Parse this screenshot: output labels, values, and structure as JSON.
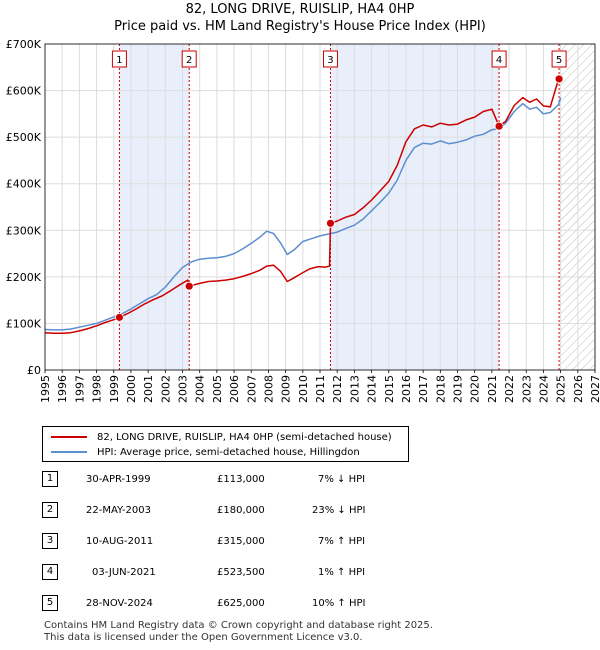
{
  "chart_data": {
    "type": "line",
    "title": "82, LONG DRIVE, RUISLIP, HA4 0HP",
    "subtitle": "Price paid vs. HM Land Registry's House Price Index (HPI)",
    "xlim": [
      1995,
      2027
    ],
    "ylim": [
      0,
      700000
    ],
    "x_ticks": [
      1995,
      1996,
      1997,
      1998,
      1999,
      2000,
      2001,
      2002,
      2003,
      2004,
      2005,
      2006,
      2007,
      2008,
      2009,
      2010,
      2011,
      2012,
      2013,
      2014,
      2015,
      2016,
      2017,
      2018,
      2019,
      2020,
      2021,
      2022,
      2023,
      2024,
      2025,
      2026,
      2027
    ],
    "y_ticks": [
      {
        "value": 0,
        "label": "£0"
      },
      {
        "value": 100000,
        "label": "£100K"
      },
      {
        "value": 200000,
        "label": "£200K"
      },
      {
        "value": 300000,
        "label": "£300K"
      },
      {
        "value": 400000,
        "label": "£400K"
      },
      {
        "value": 500000,
        "label": "£500K"
      },
      {
        "value": 600000,
        "label": "£600K"
      },
      {
        "value": 700000,
        "label": "£700K"
      }
    ],
    "grid": true,
    "legend_position": "bottom",
    "shaded_periods": [
      [
        1999.33,
        2003.39
      ],
      [
        2011.61,
        2021.42
      ]
    ],
    "future_hatch_from": 2025.0,
    "series": [
      {
        "name": "82, LONG DRIVE, RUISLIP, HA4 0HP (semi-detached house)",
        "color": "#cc0000",
        "points": [
          [
            1995.0,
            80000
          ],
          [
            1995.5,
            79000
          ],
          [
            1996.0,
            79000
          ],
          [
            1996.5,
            80000
          ],
          [
            1997.0,
            84000
          ],
          [
            1997.5,
            89000
          ],
          [
            1998.0,
            95000
          ],
          [
            1998.5,
            102000
          ],
          [
            1999.0,
            108000
          ],
          [
            1999.33,
            113000
          ],
          [
            1999.8,
            121000
          ],
          [
            2000.3,
            131000
          ],
          [
            2000.8,
            142000
          ],
          [
            2001.3,
            151000
          ],
          [
            2001.8,
            159000
          ],
          [
            2002.3,
            170000
          ],
          [
            2002.8,
            182000
          ],
          [
            2003.3,
            193000
          ],
          [
            2003.39,
            180000
          ],
          [
            2004.0,
            186000
          ],
          [
            2004.5,
            190000
          ],
          [
            2005.0,
            191000
          ],
          [
            2005.5,
            193000
          ],
          [
            2006.0,
            196000
          ],
          [
            2006.5,
            201000
          ],
          [
            2007.0,
            207000
          ],
          [
            2007.5,
            214000
          ],
          [
            2007.9,
            223000
          ],
          [
            2008.3,
            225000
          ],
          [
            2008.7,
            212000
          ],
          [
            2009.1,
            190000
          ],
          [
            2009.4,
            196000
          ],
          [
            2009.9,
            207000
          ],
          [
            2010.4,
            217000
          ],
          [
            2010.9,
            222000
          ],
          [
            2011.3,
            221000
          ],
          [
            2011.55,
            223000
          ],
          [
            2011.61,
            315000
          ],
          [
            2012.0,
            320000
          ],
          [
            2012.5,
            328000
          ],
          [
            2013.0,
            334000
          ],
          [
            2013.5,
            348000
          ],
          [
            2014.0,
            365000
          ],
          [
            2014.5,
            385000
          ],
          [
            2015.0,
            405000
          ],
          [
            2015.5,
            440000
          ],
          [
            2016.0,
            490000
          ],
          [
            2016.5,
            518000
          ],
          [
            2017.0,
            526000
          ],
          [
            2017.5,
            522000
          ],
          [
            2018.0,
            530000
          ],
          [
            2018.5,
            526000
          ],
          [
            2019.0,
            528000
          ],
          [
            2019.5,
            537000
          ],
          [
            2020.0,
            543000
          ],
          [
            2020.5,
            555000
          ],
          [
            2021.0,
            560000
          ],
          [
            2021.42,
            523500
          ],
          [
            2021.8,
            534000
          ],
          [
            2022.3,
            568000
          ],
          [
            2022.8,
            585000
          ],
          [
            2023.2,
            575000
          ],
          [
            2023.6,
            582000
          ],
          [
            2024.0,
            567000
          ],
          [
            2024.4,
            565000
          ],
          [
            2024.88,
            625000
          ],
          [
            2025.0,
            632000
          ]
        ]
      },
      {
        "name": "HPI: Average price, semi-detached house, Hillingdon",
        "color": "#5b8fd0",
        "points": [
          [
            1995.0,
            87000
          ],
          [
            1995.5,
            86000
          ],
          [
            1996.0,
            86000
          ],
          [
            1996.5,
            88000
          ],
          [
            1997.0,
            92000
          ],
          [
            1997.5,
            96000
          ],
          [
            1998.0,
            100000
          ],
          [
            1998.5,
            107000
          ],
          [
            1999.0,
            114000
          ],
          [
            1999.5,
            121000
          ],
          [
            2000.0,
            131000
          ],
          [
            2000.5,
            142000
          ],
          [
            2001.0,
            153000
          ],
          [
            2001.5,
            162000
          ],
          [
            2002.0,
            178000
          ],
          [
            2002.5,
            200000
          ],
          [
            2003.0,
            220000
          ],
          [
            2003.5,
            232000
          ],
          [
            2004.0,
            238000
          ],
          [
            2004.5,
            240000
          ],
          [
            2005.0,
            241000
          ],
          [
            2005.5,
            244000
          ],
          [
            2006.0,
            250000
          ],
          [
            2006.5,
            260000
          ],
          [
            2007.0,
            272000
          ],
          [
            2007.5,
            285000
          ],
          [
            2007.9,
            298000
          ],
          [
            2008.3,
            293000
          ],
          [
            2008.7,
            273000
          ],
          [
            2009.1,
            248000
          ],
          [
            2009.5,
            258000
          ],
          [
            2010.0,
            276000
          ],
          [
            2010.5,
            282000
          ],
          [
            2011.0,
            288000
          ],
          [
            2011.5,
            292000
          ],
          [
            2012.0,
            296000
          ],
          [
            2012.5,
            304000
          ],
          [
            2013.0,
            311000
          ],
          [
            2013.5,
            324000
          ],
          [
            2014.0,
            342000
          ],
          [
            2014.5,
            360000
          ],
          [
            2015.0,
            380000
          ],
          [
            2015.5,
            408000
          ],
          [
            2016.0,
            450000
          ],
          [
            2016.5,
            478000
          ],
          [
            2017.0,
            487000
          ],
          [
            2017.5,
            485000
          ],
          [
            2018.0,
            492000
          ],
          [
            2018.5,
            486000
          ],
          [
            2019.0,
            489000
          ],
          [
            2019.5,
            494000
          ],
          [
            2020.0,
            502000
          ],
          [
            2020.5,
            506000
          ],
          [
            2021.0,
            516000
          ],
          [
            2021.42,
            518000
          ],
          [
            2021.8,
            530000
          ],
          [
            2022.3,
            555000
          ],
          [
            2022.8,
            572000
          ],
          [
            2023.2,
            560000
          ],
          [
            2023.6,
            564000
          ],
          [
            2024.0,
            550000
          ],
          [
            2024.4,
            553000
          ],
          [
            2024.88,
            570000
          ],
          [
            2025.0,
            585000
          ]
        ]
      }
    ],
    "markers": [
      {
        "label": "1",
        "x": 1999.33,
        "y": 113000
      },
      {
        "label": "2",
        "x": 2003.39,
        "y": 180000
      },
      {
        "label": "3",
        "x": 2011.61,
        "y": 315000
      },
      {
        "label": "4",
        "x": 2021.42,
        "y": 523500
      },
      {
        "label": "5",
        "x": 2024.91,
        "y": 625000
      }
    ]
  },
  "legend": {
    "sales_label": "82, LONG DRIVE, RUISLIP, HA4 0HP (semi-detached house)",
    "hpi_label": "HPI: Average price, semi-detached house, Hillingdon"
  },
  "sales": [
    {
      "num": "1",
      "date": "30-APR-1999",
      "price": "£113,000",
      "diff": "7% ↓ HPI"
    },
    {
      "num": "2",
      "date": "22-MAY-2003",
      "price": "£180,000",
      "diff": "23% ↓ HPI"
    },
    {
      "num": "3",
      "date": "10-AUG-2011",
      "price": "£315,000",
      "diff": "7% ↑ HPI"
    },
    {
      "num": "4",
      "date": "03-JUN-2021",
      "price": "£523,500",
      "diff": "1% ↑ HPI"
    },
    {
      "num": "5",
      "date": "28-NOV-2024",
      "price": "£625,000",
      "diff": "10% ↑ HPI"
    }
  ],
  "footer": {
    "line1": "Contains HM Land Registry data © Crown copyright and database right 2025.",
    "line2": "This data is licensed under the Open Government Licence v3.0."
  },
  "colors": {
    "sales": "#cc0000",
    "hpi": "#5b8fd0",
    "shade": "#e8eefa",
    "marker_line": "#cc0000"
  }
}
